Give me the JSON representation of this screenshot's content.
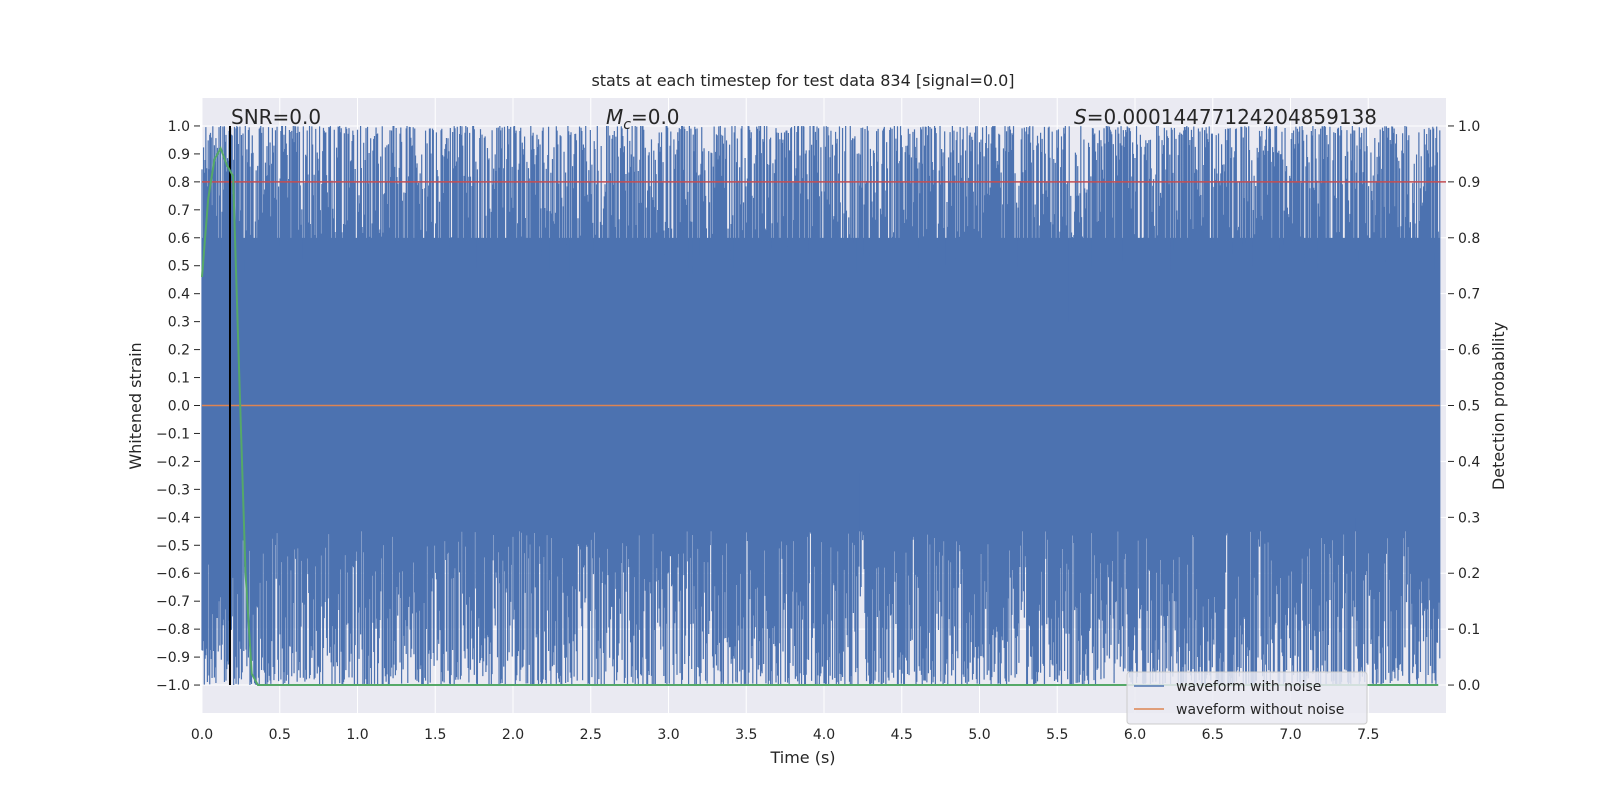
{
  "chart_data": {
    "type": "line",
    "title": "stats at each timestep for test data 834 [signal=0.0]",
    "xlabel": "Time (s)",
    "ylabel_left": "Whitened strain",
    "ylabel_right": "Detection probability",
    "xlim": [
      0.0,
      8.0
    ],
    "ylim_left": [
      -1.1,
      1.1
    ],
    "ylim_right": [
      -0.05,
      1.05
    ],
    "x_ticks": [
      "0.0",
      "0.5",
      "1.0",
      "1.5",
      "2.0",
      "2.5",
      "3.0",
      "3.5",
      "4.0",
      "4.5",
      "5.0",
      "5.5",
      "6.0",
      "6.5",
      "7.0",
      "7.5"
    ],
    "y_ticks_left": [
      "1.0",
      "0.9",
      "0.8",
      "0.7",
      "0.6",
      "0.5",
      "0.4",
      "0.3",
      "0.2",
      "0.1",
      "0.0",
      "−0.1",
      "−0.2",
      "−0.3",
      "−0.4",
      "−0.5",
      "−0.6",
      "−0.7",
      "−0.8",
      "−0.9",
      "−1.0"
    ],
    "y_ticks_right": [
      "1.0",
      "0.9",
      "0.8",
      "0.7",
      "0.6",
      "0.5",
      "0.4",
      "0.3",
      "0.2",
      "0.1",
      "0.0"
    ],
    "grid": true,
    "legend_placement": "lower-right",
    "annotations": {
      "snr": "SNR=0.0",
      "mc_symbol": "M",
      "mc_sub": "c",
      "mc_value": "=0.0",
      "s_symbol": "S",
      "s_value": "=0.00014477124204859138"
    },
    "series": [
      {
        "name": "waveform with noise",
        "color": "#4c72b0",
        "style": "dense noise, fills approximately -1.0 to 1.0 across 0.0–8.0 s"
      },
      {
        "name": "waveform without noise",
        "color": "#dd8452",
        "x": [
          0.0,
          8.0
        ],
        "y": [
          0.0,
          0.0
        ]
      }
    ],
    "detection_probability": {
      "color": "#55a868",
      "x": [
        0.0,
        0.04,
        0.08,
        0.12,
        0.16,
        0.2,
        0.24,
        0.28,
        0.32,
        0.36,
        0.5,
        1.0,
        2.0,
        3.0,
        4.0,
        5.0,
        6.0,
        7.0,
        7.95
      ],
      "y": [
        0.73,
        0.87,
        0.94,
        0.96,
        0.93,
        0.91,
        0.55,
        0.2,
        0.02,
        0.0,
        0.0,
        0.0,
        0.0,
        0.0,
        0.0,
        0.0,
        0.0,
        0.0,
        0.0
      ]
    },
    "threshold": {
      "color": "#c44e52",
      "y_right": 0.9
    },
    "marker_line": {
      "color": "#000000",
      "x": 0.18
    }
  }
}
